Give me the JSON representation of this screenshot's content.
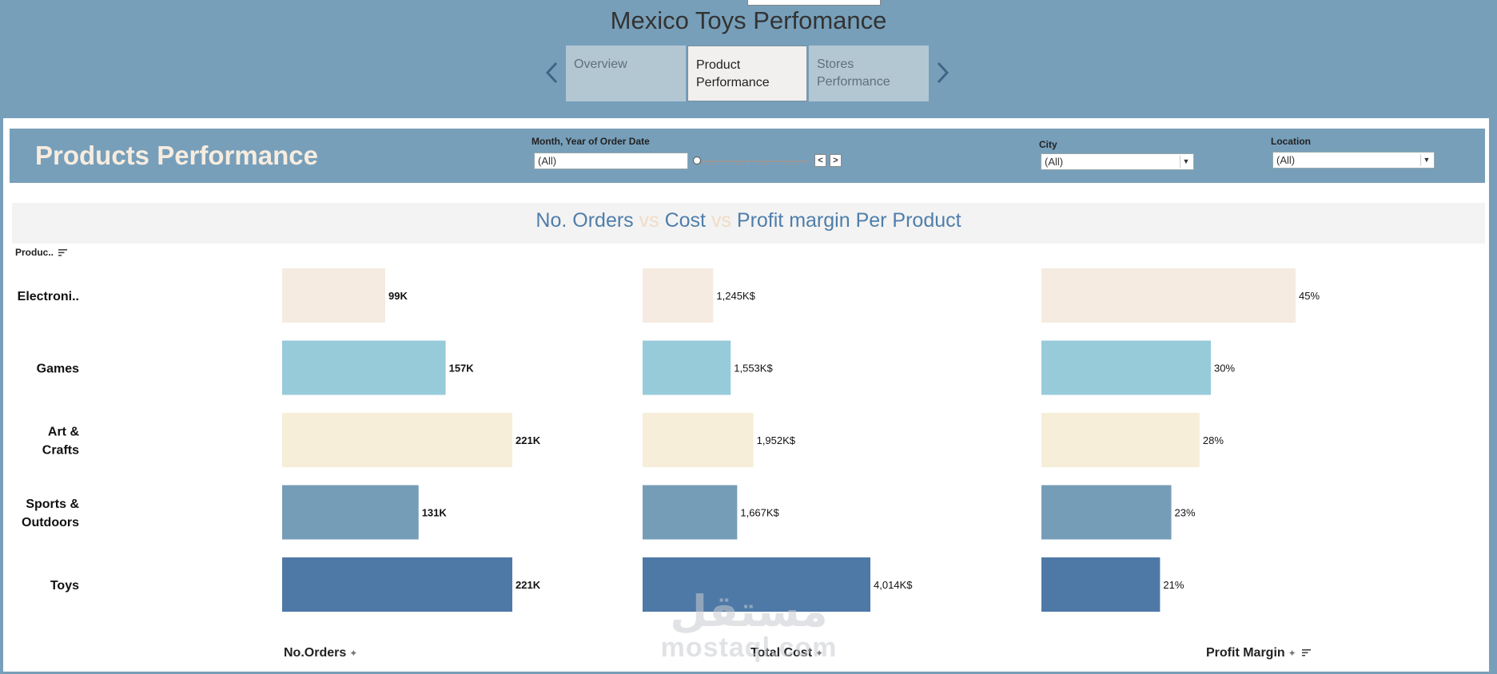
{
  "app": {
    "title": "Mexico Toys Perfomance"
  },
  "tabs": [
    {
      "label": "Overview",
      "active": false
    },
    {
      "label": "Product Performance",
      "active": true
    },
    {
      "label": "Stores Performance",
      "active": false
    }
  ],
  "icons": {
    "prev": "chevron-left-icon",
    "next": "chevron-right-icon",
    "sort": "sort-descending-icon",
    "pin": "pin-icon",
    "dropdown": "chevron-down-icon"
  },
  "header": {
    "title": "Products Performance"
  },
  "filters": {
    "date": {
      "label": "Month, Year of Order Date",
      "value": "(All)",
      "prev": "<",
      "next": ">"
    },
    "city": {
      "label": "City",
      "value": "(All)"
    },
    "location": {
      "label": "Location",
      "value": "(All)"
    }
  },
  "chart_title": {
    "part1": "No. Orders",
    "sep1": " vs ",
    "part2": "Cost",
    "sep2": " vs ",
    "part3": "Profit margin Per Product"
  },
  "watermark": {
    "line1": "مستقل",
    "line2": "mostaql.com"
  },
  "colors": {
    "band": "#779fba",
    "title_blue": "#4f7eab",
    "title_beige": "#f2dcc5",
    "bars": [
      "#f6ebe0",
      "#98cbda",
      "#f6eed8",
      "#769db8",
      "#4e79a7"
    ]
  },
  "chart_data": {
    "type": "bar",
    "orientation": "horizontal",
    "dimension_header": "Produc..",
    "categories": [
      [
        "Electroni.."
      ],
      [
        "Games"
      ],
      [
        "Art &",
        "Crafts"
      ],
      [
        "Sports &",
        "Outdoors"
      ],
      [
        "Toys"
      ]
    ],
    "series": [
      {
        "name": "No.Orders",
        "values": [
          99,
          157,
          221,
          131,
          221
        ],
        "labels": [
          "99K",
          "157K",
          "221K",
          "131K",
          "221K"
        ],
        "max": 221
      },
      {
        "name": "Total Cost",
        "values": [
          1245,
          1553,
          1952,
          1667,
          4014
        ],
        "labels": [
          "1,245K$",
          "1,553K$",
          "1,952K$",
          "1,667K$",
          "4,014K$"
        ],
        "max": 4014
      },
      {
        "name": "Profit Margin",
        "values": [
          45,
          30,
          28,
          23,
          21
        ],
        "labels": [
          "45%",
          "30%",
          "28%",
          "23%",
          "21%"
        ],
        "max": 45
      }
    ],
    "grid": false,
    "legend": "none"
  }
}
